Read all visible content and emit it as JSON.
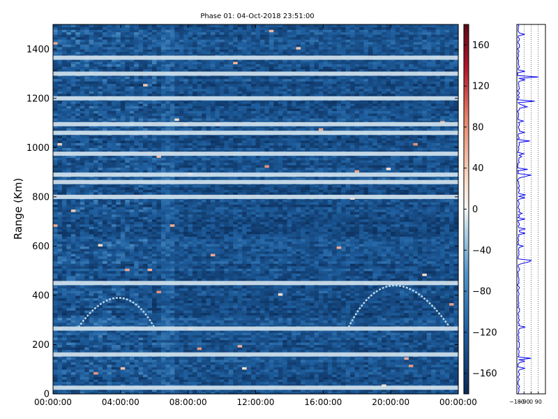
{
  "chart_data": [
    {
      "type": "heatmap",
      "title": "Phase 01: 04-Oct-2018 23:51:00",
      "ylabel": "Range (Km)",
      "xlabel": "",
      "xlim": [
        "00:00:00",
        "24:00:00"
      ],
      "ylim": [
        0,
        1500
      ],
      "x_ticks": [
        "00:00:00",
        "04:00:00",
        "08:00:00",
        "12:00:00",
        "16:00:00",
        "20:00:00",
        "00:00:00"
      ],
      "y_ticks": [
        "0",
        "200",
        "400",
        "600",
        "800",
        "1000",
        "1200",
        "1400"
      ],
      "colormap": "RdBu_r",
      "value_range": [
        -180,
        180
      ],
      "dominant_value_range": [
        -160,
        -110
      ],
      "colorbar_ticks": [
        "160",
        "120",
        "80",
        "40",
        "0",
        "−40",
        "−80",
        "−120",
        "−160"
      ],
      "horizontal_bands_km": [
        25,
        160,
        265,
        450,
        800,
        860,
        890,
        975,
        1060,
        1095,
        1200,
        1300,
        1365
      ],
      "features": [
        {
          "description": "arc",
          "x_start": "01:30:00",
          "x_peak": "04:00:00",
          "x_end": "06:00:00",
          "y_base_km": 270,
          "y_peak_km": 390
        },
        {
          "description": "arc",
          "x_start": "17:30:00",
          "x_peak": "20:00:00",
          "x_end": "23:30:00",
          "y_base_km": 270,
          "y_peak_km": 440
        }
      ],
      "grid": false
    },
    {
      "type": "line",
      "title": "",
      "x_ticks": [
        "−180",
        "−90",
        "0",
        "90"
      ],
      "xlim": [
        -180,
        180
      ],
      "ylim": [
        0,
        1500
      ],
      "series_color": "#0000ee",
      "grid": "vertical dotted",
      "baseline_value": -170
    }
  ]
}
